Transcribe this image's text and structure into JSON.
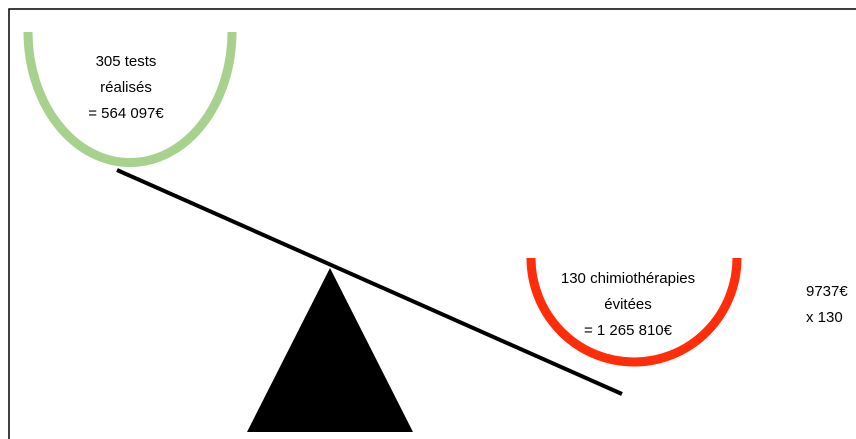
{
  "left_pan": {
    "lines": [
      "305 tests",
      "réalisés",
      "= 564 097€"
    ]
  },
  "right_pan": {
    "lines": [
      "130 chimiothérapies",
      "évitées",
      "= 1 265 810€"
    ]
  },
  "side_note": {
    "lines": [
      "9737€",
      "x 130"
    ]
  }
}
